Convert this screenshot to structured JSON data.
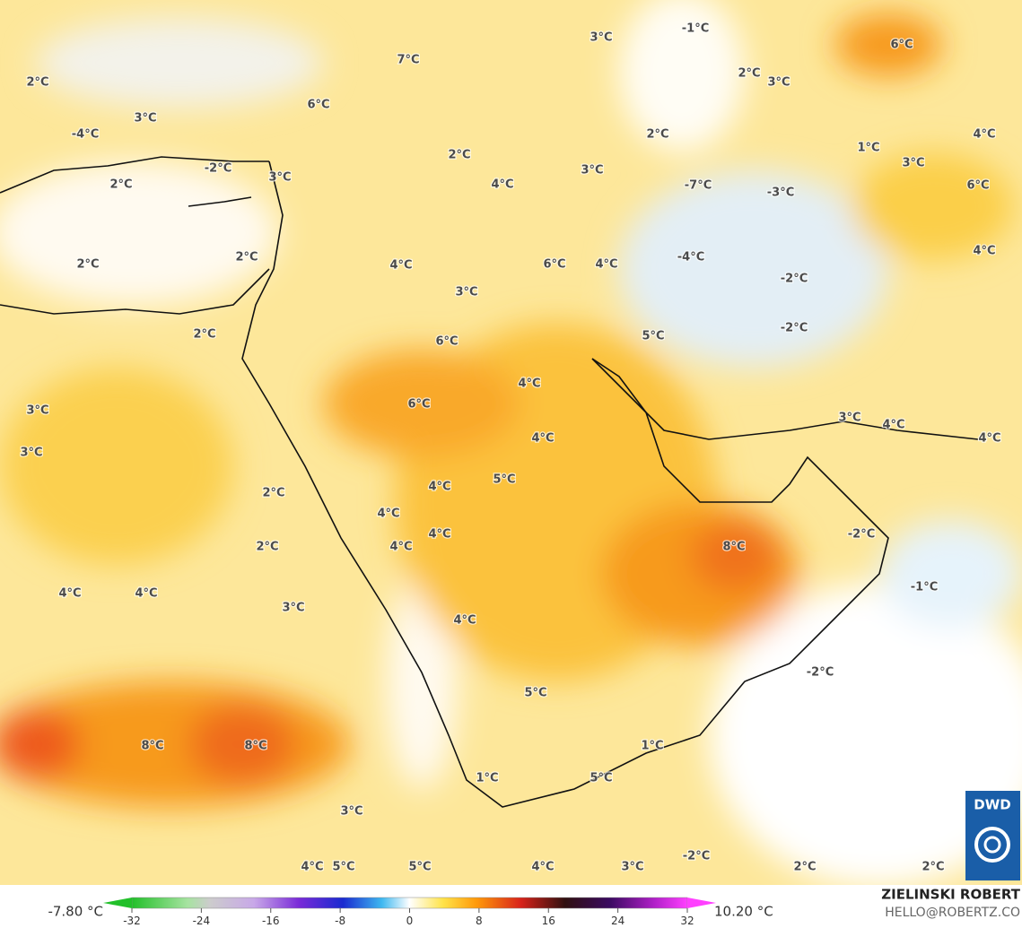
{
  "map_labels": [
    "-1°C",
    "6°C",
    "3°C",
    "7°C",
    "2°C",
    "3°C",
    "2°C",
    "6°C",
    "3°C",
    "-4°C",
    "2°C",
    "1°C",
    "4°C",
    "-2°C",
    "2°C",
    "3°C",
    "3°C",
    "2°C",
    "3°C",
    "4°C",
    "-7°C",
    "-3°C",
    "6°C",
    "4°C",
    "2°C",
    "2°C",
    "4°C",
    "6°C",
    "4°C",
    "-4°C",
    "-2°C",
    "3°C",
    "2°C",
    "6°C",
    "5°C",
    "-2°C",
    "4°C",
    "6°C",
    "3°C",
    "3°C",
    "4°C",
    "4°C",
    "4°C",
    "3°C",
    "5°C",
    "4°C",
    "2°C",
    "4°C",
    "4°C",
    "4°C",
    "2°C",
    "8°C",
    "-2°C",
    "4°C",
    "4°C",
    "-1°C",
    "3°C",
    "4°C",
    "-2°C",
    "5°C",
    "8°C",
    "8°C",
    "1°C",
    "1°C",
    "5°C",
    "3°C",
    "-2°C",
    "2°C",
    "2°C",
    "4°C",
    "5°C",
    "5°C",
    "4°C",
    "3°C"
  ],
  "colorbar": {
    "min_label": "-7.80 °C",
    "max_label": "10.20 °C",
    "ticks": [
      -32,
      -24,
      -16,
      -8,
      0,
      8,
      16,
      24,
      32
    ]
  },
  "credits": {
    "author": "ZIELINSKI ROBERT",
    "email": "HELLO@ROBERTZ.CO",
    "logo": "DWD"
  }
}
